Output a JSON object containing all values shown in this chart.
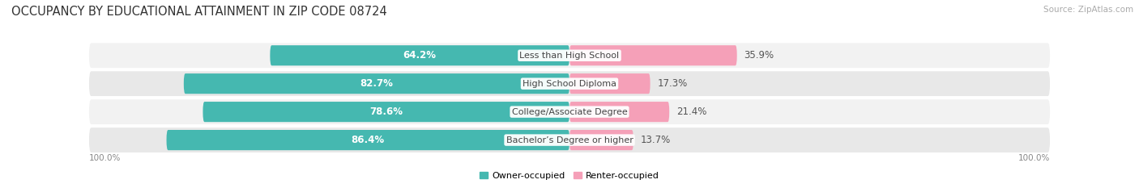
{
  "title": "OCCUPANCY BY EDUCATIONAL ATTAINMENT IN ZIP CODE 08724",
  "source": "Source: ZipAtlas.com",
  "categories": [
    "Less than High School",
    "High School Diploma",
    "College/Associate Degree",
    "Bachelor’s Degree or higher"
  ],
  "owner_pct": [
    64.2,
    82.7,
    78.6,
    86.4
  ],
  "renter_pct": [
    35.9,
    17.3,
    21.4,
    13.7
  ],
  "owner_color": "#45b8b0",
  "renter_color": "#f5a0b8",
  "row_bg_light": "#f2f2f2",
  "row_bg_dark": "#e8e8e8",
  "title_fontsize": 10.5,
  "source_fontsize": 7.5,
  "bar_label_fontsize": 8.5,
  "category_fontsize": 8.0,
  "axis_label_fontsize": 7.5,
  "bar_height": 0.72
}
